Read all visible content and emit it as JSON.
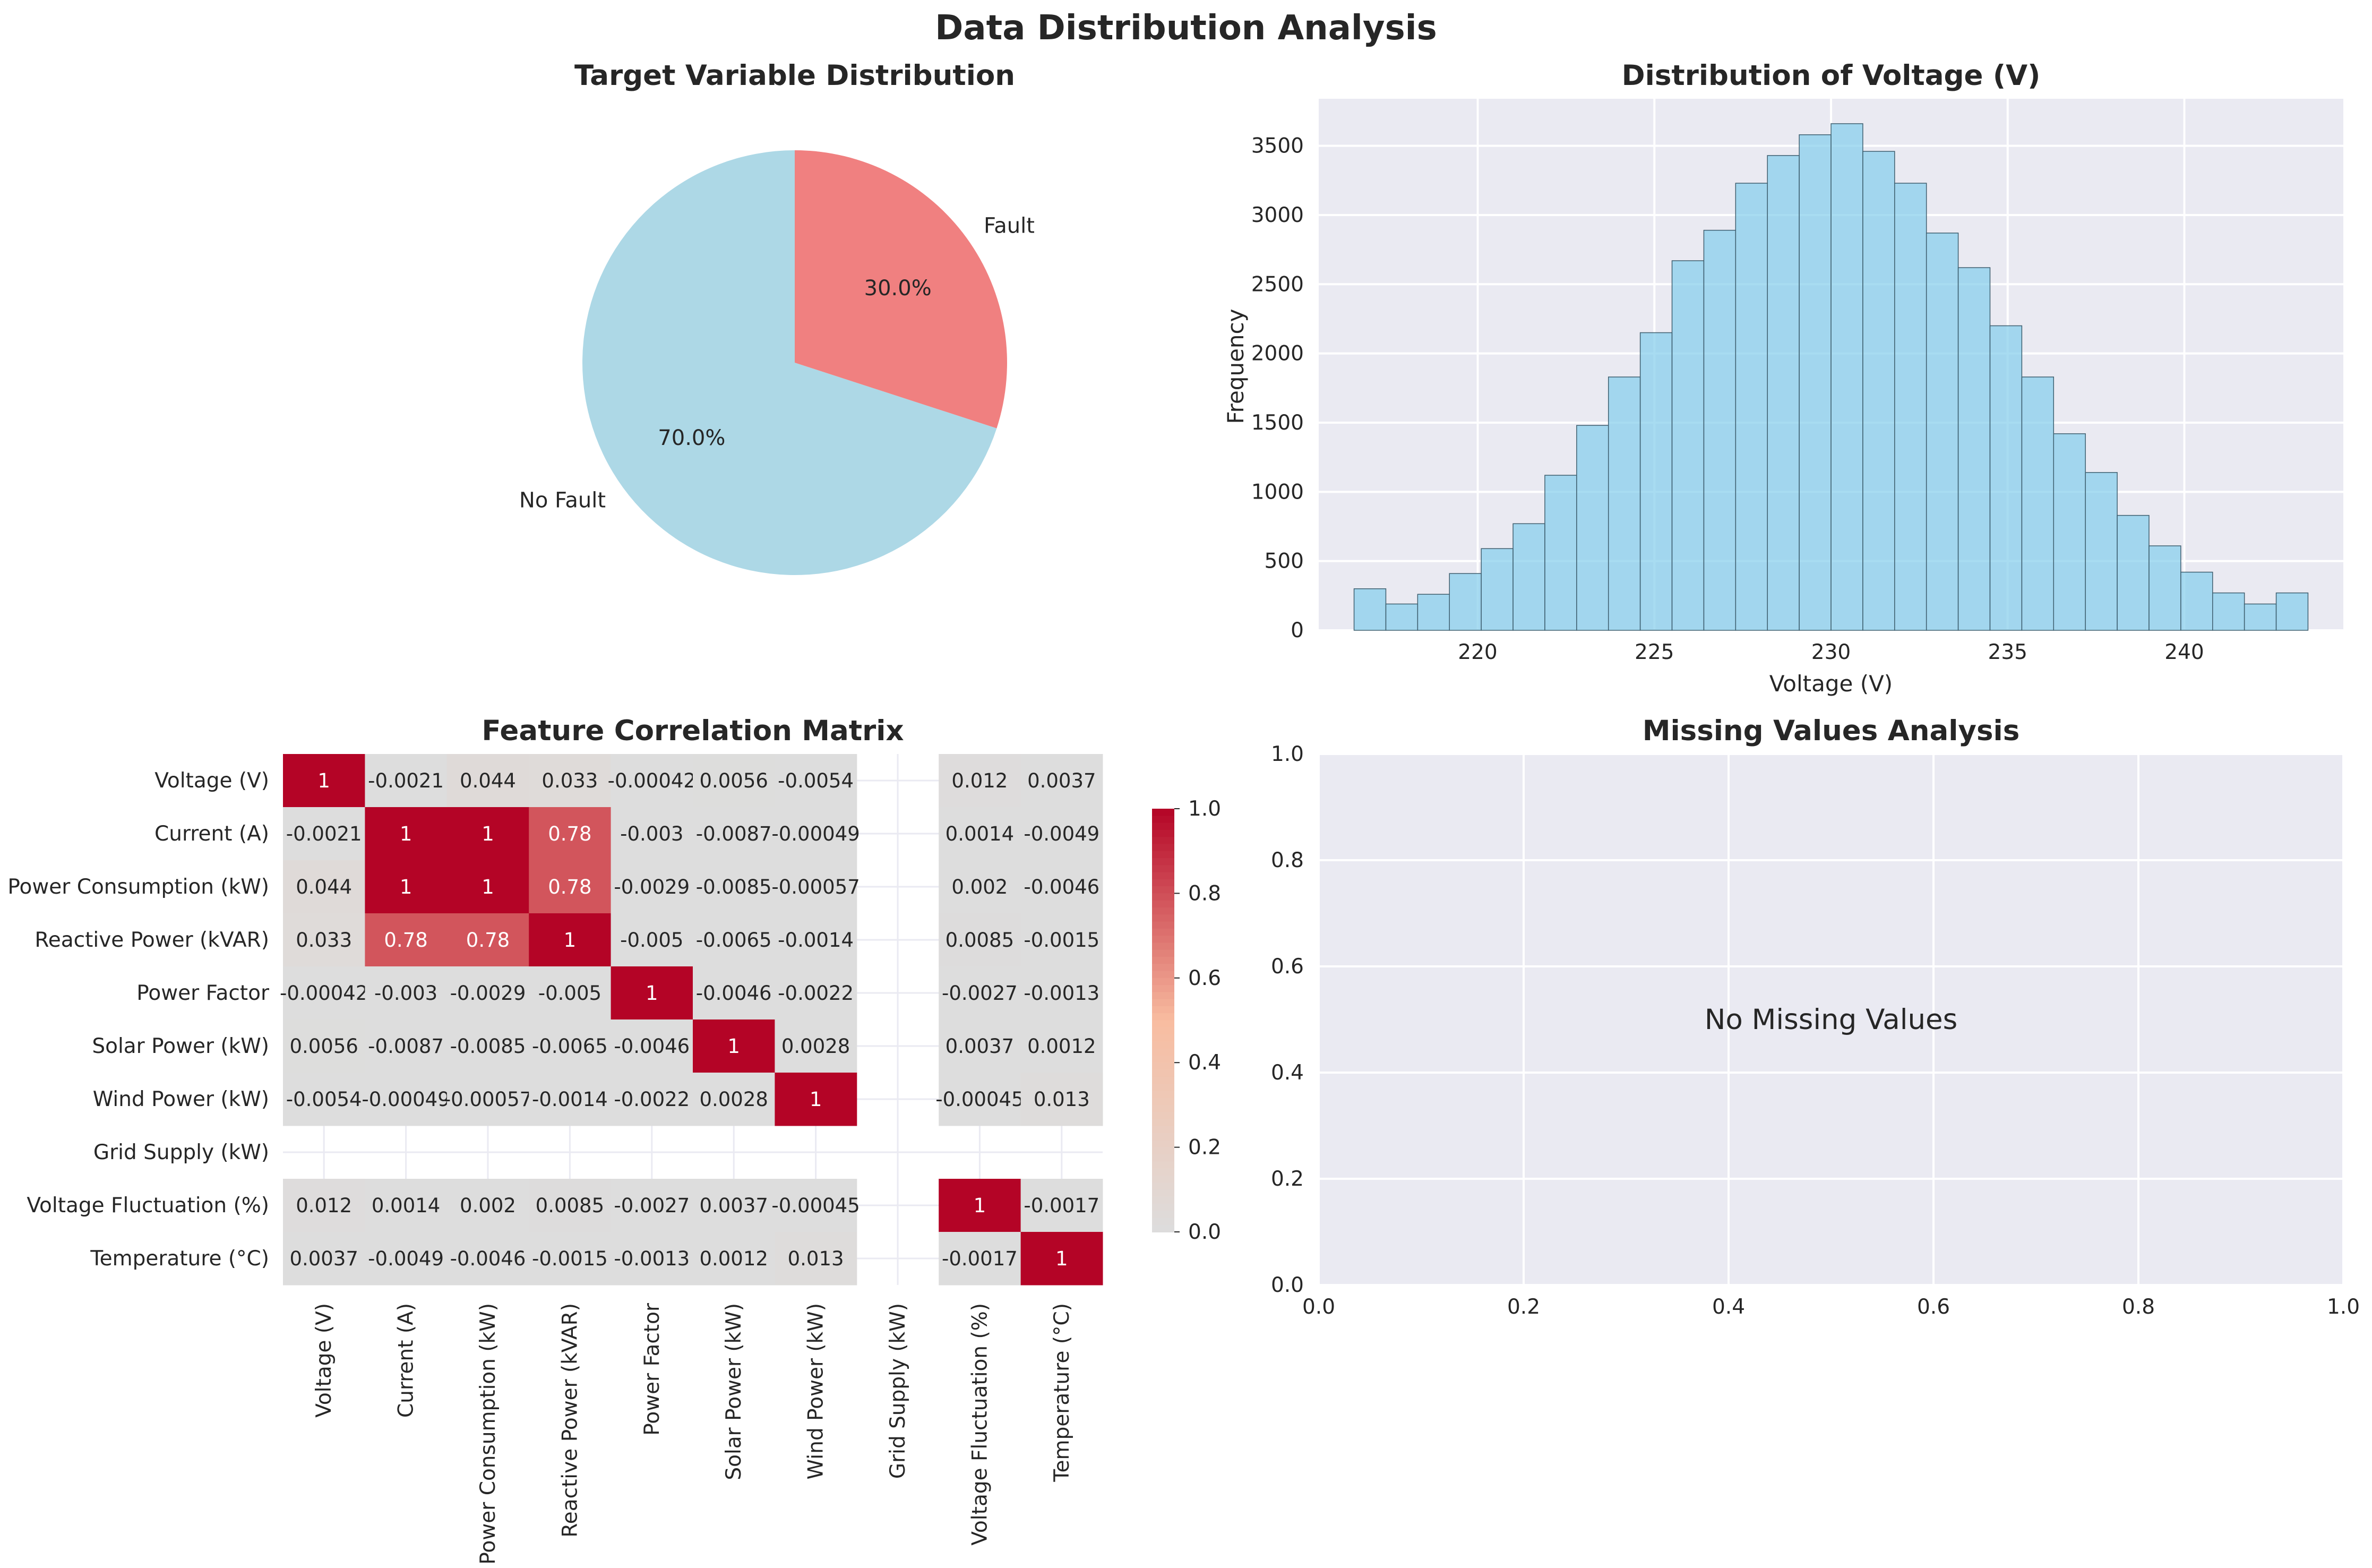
{
  "figure": {
    "title": "Data Distribution Analysis"
  },
  "colors": {
    "axes_face": "#EAEAF2",
    "grid": "#FFFFFF",
    "text": "#262626",
    "pie_no_fault": "#ADD8E6",
    "pie_fault": "#F08080",
    "hist_bar": "#87CEEB",
    "hist_edge": "#3F5F6F",
    "heat_pos": "#B40426",
    "heat_zero": "#DDDDDD"
  },
  "chart_data": [
    {
      "type": "pie",
      "title": "Target Variable Distribution",
      "labels": [
        "No Fault",
        "Fault"
      ],
      "values": [
        70.0,
        30.0
      ],
      "pct_labels": [
        "70.0%",
        "30.0%"
      ],
      "colors": [
        "#ADD8E6",
        "#F08080"
      ],
      "startangle_deg": 90
    },
    {
      "type": "bar",
      "subtype": "histogram",
      "title": "Distribution of Voltage (V)",
      "xlabel": "Voltage (V)",
      "ylabel": "Frequency",
      "bin_start": 216.5,
      "bin_width": 0.9,
      "counts": [
        300,
        190,
        260,
        410,
        590,
        770,
        1120,
        1480,
        1830,
        2150,
        2670,
        2890,
        3230,
        3430,
        3580,
        3660,
        3460,
        3230,
        2870,
        2620,
        2200,
        1830,
        1420,
        1140,
        830,
        610,
        420,
        270,
        190,
        270
      ],
      "xlim": [
        215.5,
        244.5
      ],
      "ylim": [
        0,
        3840
      ],
      "xticks": [
        220,
        225,
        230,
        235,
        240
      ],
      "yticks": [
        0,
        500,
        1000,
        1500,
        2000,
        2500,
        3000,
        3500
      ],
      "grid": true
    },
    {
      "type": "heatmap",
      "title": "Feature Correlation Matrix",
      "labels": [
        "Voltage (V)",
        "Current (A)",
        "Power Consumption (kW)",
        "Reactive Power (kVAR)",
        "Power Factor",
        "Solar Power (kW)",
        "Wind Power (kW)",
        "Grid Supply (kW)",
        "Voltage Fluctuation (%)",
        "Temperature (°C)"
      ],
      "values": [
        [
          1,
          -0.0021,
          0.044,
          0.033,
          -0.00042,
          0.0056,
          -0.0054,
          null,
          0.012,
          0.0037
        ],
        [
          -0.0021,
          1,
          1,
          0.78,
          -0.003,
          -0.0087,
          -0.00049,
          null,
          0.0014,
          -0.0049
        ],
        [
          0.044,
          1,
          1,
          0.78,
          -0.0029,
          -0.0085,
          -0.00057,
          null,
          0.002,
          -0.0046
        ],
        [
          0.033,
          0.78,
          0.78,
          1,
          -0.005,
          -0.0065,
          -0.0014,
          null,
          0.0085,
          -0.0015
        ],
        [
          -0.00042,
          -0.003,
          -0.0029,
          -0.005,
          1,
          -0.0046,
          -0.0022,
          null,
          -0.0027,
          -0.0013
        ],
        [
          0.0056,
          -0.0087,
          -0.0085,
          -0.0065,
          -0.0046,
          1,
          0.0028,
          null,
          0.0037,
          0.0012
        ],
        [
          -0.0054,
          -0.00049,
          -0.00057,
          -0.0014,
          -0.0022,
          0.0028,
          1,
          null,
          -0.00045,
          0.013
        ],
        [
          null,
          null,
          null,
          null,
          null,
          null,
          null,
          null,
          null,
          null
        ],
        [
          0.012,
          0.0014,
          0.002,
          0.0085,
          -0.0027,
          0.0037,
          -0.00045,
          null,
          1,
          -0.0017
        ],
        [
          0.0037,
          -0.0049,
          -0.0046,
          -0.0015,
          -0.0013,
          0.0012,
          0.013,
          null,
          -0.0017,
          1
        ]
      ],
      "annotations": [
        [
          "1",
          "-0.0021",
          "0.044",
          "0.033",
          "-0.00042",
          "0.0056",
          "-0.0054",
          "",
          "0.012",
          "0.0037"
        ],
        [
          "-0.0021",
          "1",
          "1",
          "0.78",
          "-0.003",
          "-0.0087",
          "-0.00049",
          "",
          "0.0014",
          "-0.0049"
        ],
        [
          "0.044",
          "1",
          "1",
          "0.78",
          "-0.0029",
          "-0.0085",
          "-0.00057",
          "",
          "0.002",
          "-0.0046"
        ],
        [
          "0.033",
          "0.78",
          "0.78",
          "1",
          "-0.005",
          "-0.0065",
          "-0.0014",
          "",
          "0.0085",
          "-0.0015"
        ],
        [
          "-0.00042",
          "-0.003",
          "-0.0029",
          "-0.005",
          "1",
          "-0.0046",
          "-0.0022",
          "",
          "-0.0027",
          "-0.0013"
        ],
        [
          "0.0056",
          "-0.0087",
          "-0.0085",
          "-0.0065",
          "-0.0046",
          "1",
          "0.0028",
          "",
          "0.0037",
          "0.0012"
        ],
        [
          "-0.0054",
          "-0.00049",
          "-0.00057",
          "-0.0014",
          "-0.0022",
          "0.0028",
          "1",
          "",
          "-0.00045",
          "0.013"
        ],
        [
          "",
          "",
          "",
          "",
          "",
          "",
          "",
          "",
          "",
          ""
        ],
        [
          "0.012",
          "0.0014",
          "0.002",
          "0.0085",
          "-0.0027",
          "0.0037",
          "-0.00045",
          "",
          "1",
          "-0.0017"
        ],
        [
          "0.0037",
          "-0.0049",
          "-0.0046",
          "-0.0015",
          "-0.0013",
          "0.0012",
          "0.013",
          "",
          "-0.0017",
          "1"
        ]
      ],
      "colorbar": {
        "range": [
          0.0,
          1.0
        ],
        "ticks": [
          "0.0",
          "0.2",
          "0.4",
          "0.6",
          "0.8",
          "1.0"
        ]
      },
      "grid": true
    },
    {
      "type": "scatter",
      "title": "Missing Values Analysis",
      "annotation": "No Missing Values",
      "xlim": [
        0.0,
        1.0
      ],
      "ylim": [
        0.0,
        1.0
      ],
      "xticks": [
        "0.0",
        "0.2",
        "0.4",
        "0.6",
        "0.8",
        "1.0"
      ],
      "yticks": [
        "0.0",
        "0.2",
        "0.4",
        "0.6",
        "0.8",
        "1.0"
      ],
      "grid": true
    }
  ]
}
